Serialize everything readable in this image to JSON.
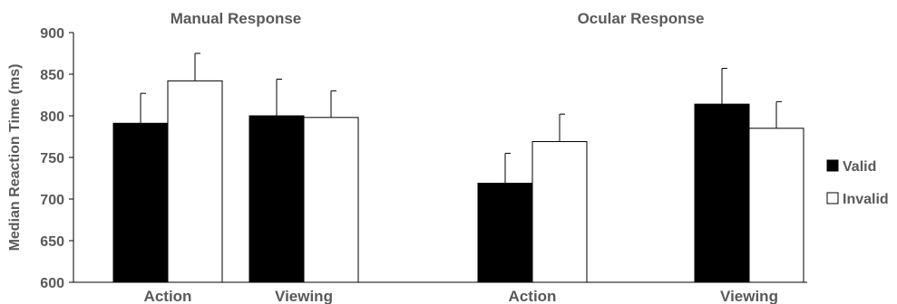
{
  "chart_data": {
    "type": "bar",
    "ylabel": "Median Reaction Time (ms)",
    "ylim": [
      600,
      900
    ],
    "yticks": [
      600,
      650,
      700,
      750,
      800,
      850,
      900
    ],
    "grid": false,
    "legend_position": "right",
    "panels": [
      {
        "title": "Manual Response",
        "categories": [
          "Action",
          "Viewing"
        ],
        "series": [
          {
            "name": "Valid",
            "values": [
              791,
              800
            ],
            "error": [
              36,
              44
            ]
          },
          {
            "name": "Invalid",
            "values": [
              842,
              798
            ],
            "error": [
              33,
              32
            ]
          }
        ]
      },
      {
        "title": "Ocular Response",
        "categories": [
          "Action",
          "Viewing"
        ],
        "series": [
          {
            "name": "Valid",
            "values": [
              719,
              814
            ],
            "error": [
              36,
              43
            ]
          },
          {
            "name": "Invalid",
            "values": [
              769,
              785
            ],
            "error": [
              33,
              32
            ]
          }
        ]
      }
    ],
    "legend": [
      {
        "name": "Valid",
        "fill": "#000000"
      },
      {
        "name": "Invalid",
        "fill": "#ffffff"
      }
    ]
  }
}
